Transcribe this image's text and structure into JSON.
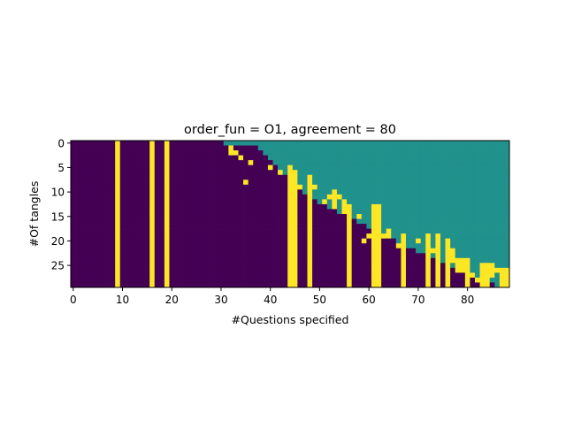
{
  "chart_data": {
    "type": "heatmap",
    "title": "order_fun = O1, agreement = 80",
    "xlabel": "#Questions specified",
    "ylabel": "#Of tangles",
    "n_cols": 89,
    "n_rows": 30,
    "xticks": [
      0,
      10,
      20,
      30,
      40,
      50,
      60,
      70,
      80
    ],
    "yticks": [
      0,
      5,
      10,
      15,
      20,
      25
    ],
    "xlim": [
      -0.5,
      88.5
    ],
    "ylim": [
      29.5,
      -0.5
    ],
    "colors": {
      "0": "#440154",
      "0.5": "#21918c",
      "1": "#fde725"
    },
    "value_legend": {
      "0": "purple (no)",
      "0.5": "teal (undefined)",
      "1": "yellow (yes)"
    },
    "teal_boundary_note": "for each row, cells to the right of the boundary column are 0.5",
    "teal_start_col_by_row": [
      31,
      38,
      39,
      40,
      41,
      42,
      43,
      44,
      45,
      46,
      47,
      48,
      50,
      52,
      54,
      56,
      58,
      60,
      62,
      64,
      66,
      68,
      70,
      72,
      74,
      76,
      78,
      80,
      84,
      86
    ],
    "yellow_full_columns": [
      9,
      16,
      19
    ],
    "yellow_column_segments": [
      {
        "col": 32,
        "rows": [
          1,
          2
        ]
      },
      {
        "col": 33,
        "rows": [
          2
        ]
      },
      {
        "col": 34,
        "rows": [
          3
        ]
      },
      {
        "col": 36,
        "rows": [
          4
        ]
      },
      {
        "col": 35,
        "rows": [
          8
        ]
      },
      {
        "col": 40,
        "rows": [
          5
        ]
      },
      {
        "col": 42,
        "rows": [
          6
        ]
      },
      {
        "col": 44,
        "rows": [
          5,
          29
        ]
      },
      {
        "col": 45,
        "rows": [
          6,
          29
        ]
      },
      {
        "col": 46,
        "rows": [
          9
        ]
      },
      {
        "col": 48,
        "rows": [
          7,
          29
        ]
      },
      {
        "col": 49,
        "rows": [
          9
        ]
      },
      {
        "col": 51,
        "rows": [
          12
        ]
      },
      {
        "col": 52,
        "rows": [
          11,
          11
        ]
      },
      {
        "col": 53,
        "rows": [
          10,
          13
        ]
      },
      {
        "col": 54,
        "rows": [
          11
        ]
      },
      {
        "col": 55,
        "rows": [
          12,
          14
        ]
      },
      {
        "col": 56,
        "rows": [
          13,
          29
        ]
      },
      {
        "col": 58,
        "rows": [
          15
        ]
      },
      {
        "col": 59,
        "rows": [
          20
        ]
      },
      {
        "col": 60,
        "rows": [
          19
        ]
      },
      {
        "col": 61,
        "rows": [
          13,
          29
        ]
      },
      {
        "col": 62,
        "rows": [
          13,
          29
        ]
      },
      {
        "col": 63,
        "rows": [
          19
        ]
      },
      {
        "col": 64,
        "rows": [
          18,
          19
        ]
      },
      {
        "col": 66,
        "rows": [
          21
        ]
      },
      {
        "col": 67,
        "rows": [
          19,
          29
        ]
      },
      {
        "col": 70,
        "rows": [
          20
        ]
      },
      {
        "col": 72,
        "rows": [
          19,
          29
        ]
      },
      {
        "col": 73,
        "rows": [
          22
        ]
      },
      {
        "col": 74,
        "rows": [
          19,
          29
        ]
      },
      {
        "col": 76,
        "rows": [
          20,
          29
        ]
      },
      {
        "col": 77,
        "rows": [
          22,
          24
        ]
      },
      {
        "col": 78,
        "rows": [
          24,
          26
        ]
      },
      {
        "col": 79,
        "rows": [
          24,
          26
        ]
      },
      {
        "col": 80,
        "rows": [
          24,
          29
        ]
      },
      {
        "col": 81,
        "rows": [
          27
        ]
      },
      {
        "col": 82,
        "rows": [
          28
        ]
      },
      {
        "col": 83,
        "rows": [
          25,
          29
        ]
      },
      {
        "col": 84,
        "rows": [
          25,
          29
        ]
      },
      {
        "col": 85,
        "rows": [
          25,
          27
        ]
      },
      {
        "col": 86,
        "rows": [
          26
        ]
      },
      {
        "col": 87,
        "rows": [
          26,
          29
        ]
      },
      {
        "col": 88,
        "rows": [
          26,
          29
        ]
      }
    ],
    "grid": false,
    "legend": "none"
  }
}
